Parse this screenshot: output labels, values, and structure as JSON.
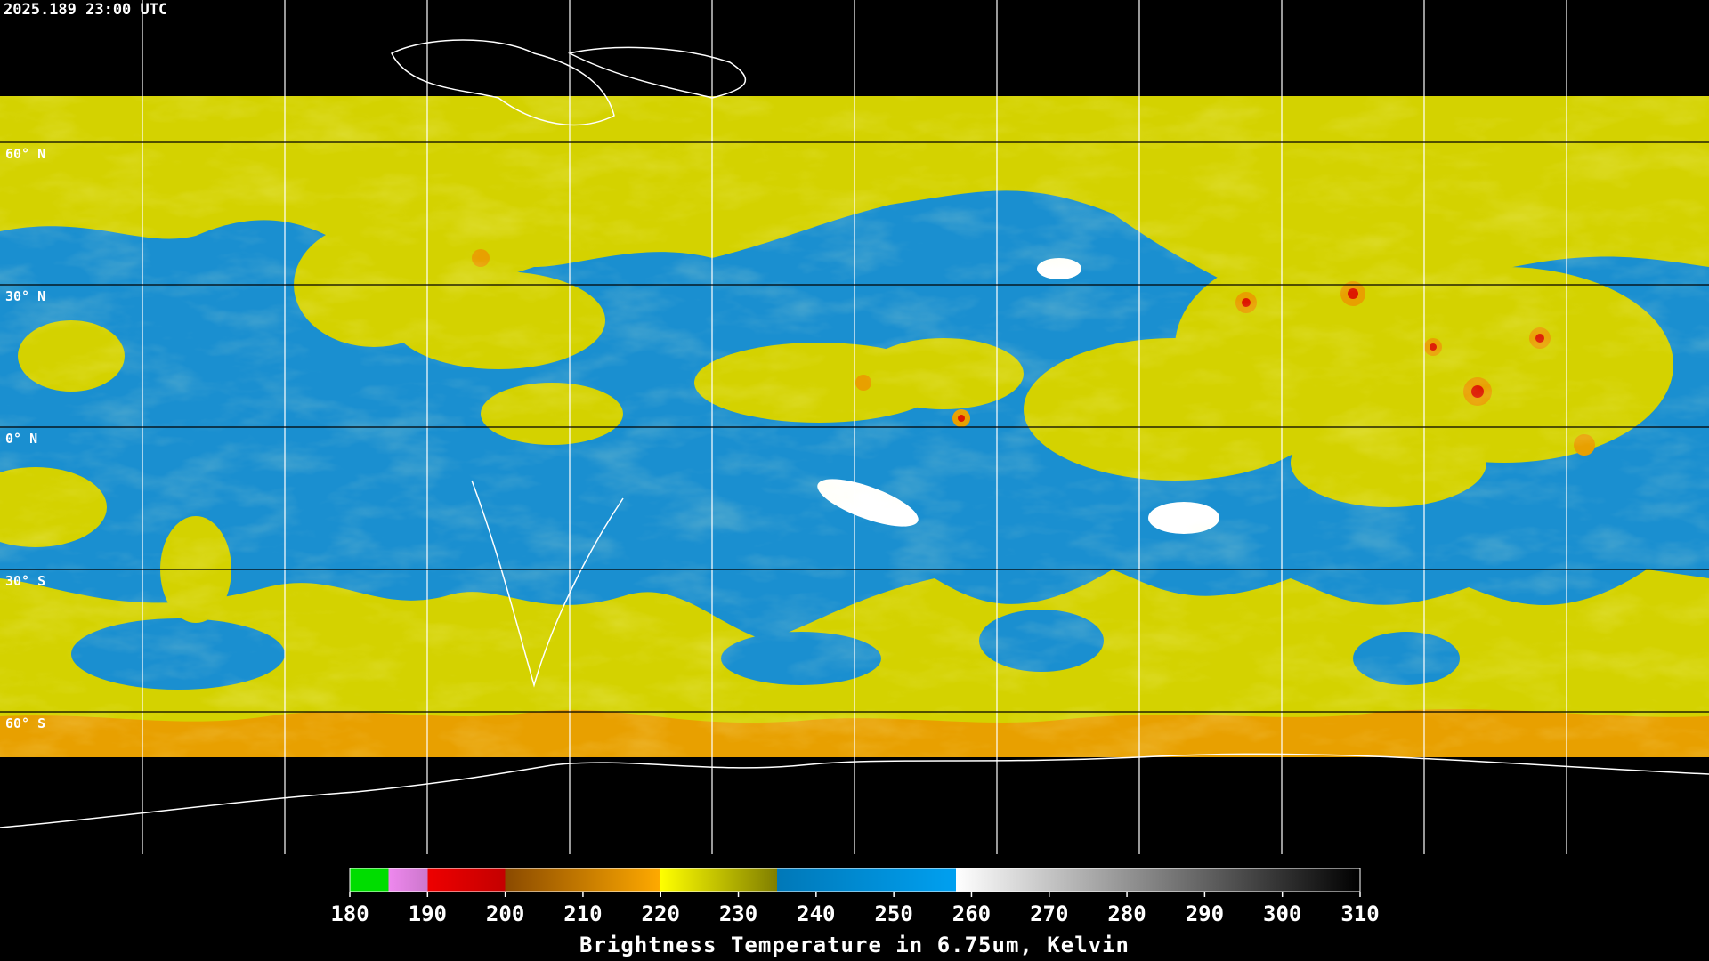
{
  "header": {
    "timestamp": "2025.189 23:00 UTC"
  },
  "map": {
    "latitude_labels": [
      {
        "value": 60,
        "label": "60° N"
      },
      {
        "value": 30,
        "label": "30° N"
      },
      {
        "value": 0,
        "label": "0° N"
      },
      {
        "value": -30,
        "label": "30° S"
      },
      {
        "value": -60,
        "label": "60° S"
      }
    ]
  },
  "colorbar": {
    "lim": [
      180,
      310
    ],
    "ticks": [
      180,
      190,
      200,
      210,
      220,
      230,
      240,
      250,
      260,
      270,
      280,
      290,
      300,
      310
    ],
    "label": "Brightness Temperature in 6.75um, Kelvin",
    "colorscale": [
      {
        "value": 180,
        "color": "#00dd00"
      },
      {
        "value": 185,
        "color": "#00dd00"
      },
      {
        "value": 185,
        "color": "#ee88ee"
      },
      {
        "value": 190,
        "color": "#cc77cc"
      },
      {
        "value": 190,
        "color": "#ee0000"
      },
      {
        "value": 200,
        "color": "#c40000"
      },
      {
        "value": 200,
        "color": "#8a4a00"
      },
      {
        "value": 220,
        "color": "#ffaa00"
      },
      {
        "value": 220,
        "color": "#ffff00"
      },
      {
        "value": 235,
        "color": "#807e00"
      },
      {
        "value": 235,
        "color": "#0078b8"
      },
      {
        "value": 258,
        "color": "#00a0f0"
      },
      {
        "value": 258,
        "color": "#ffffff"
      },
      {
        "value": 310,
        "color": "#000000"
      }
    ]
  }
}
